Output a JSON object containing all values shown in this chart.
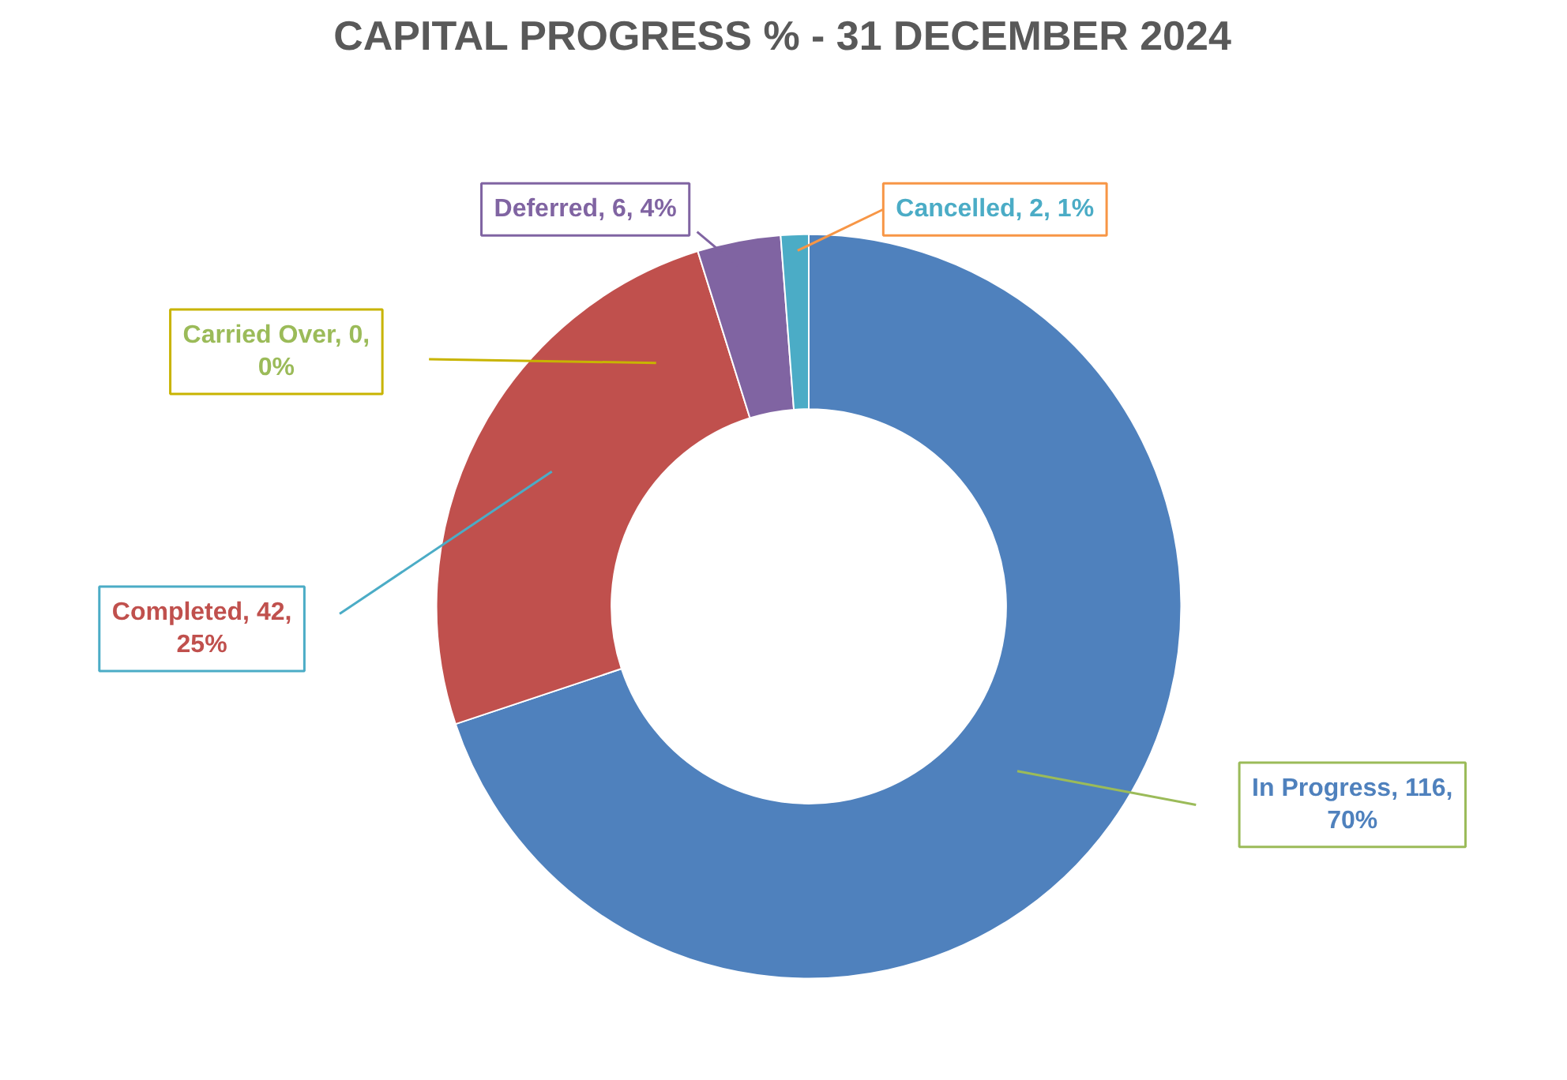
{
  "chart_data": {
    "type": "donut",
    "title": "CAPITAL PROGRESS % - 31 DECEMBER 2024",
    "categories": [
      "In Progress",
      "Completed",
      "Carried Over",
      "Deferred",
      "Cancelled"
    ],
    "values": [
      116,
      42,
      0,
      6,
      2
    ],
    "colors": [
      "#4f81bd",
      "#c0504d",
      "#9bbb59",
      "#8064a2",
      "#4bacc6"
    ],
    "value_labels": [
      ", 116,\n70%",
      ", 42,\n25%",
      ", 0,\n0%",
      ", 6, 4%",
      ", 2, 1%"
    ]
  }
}
